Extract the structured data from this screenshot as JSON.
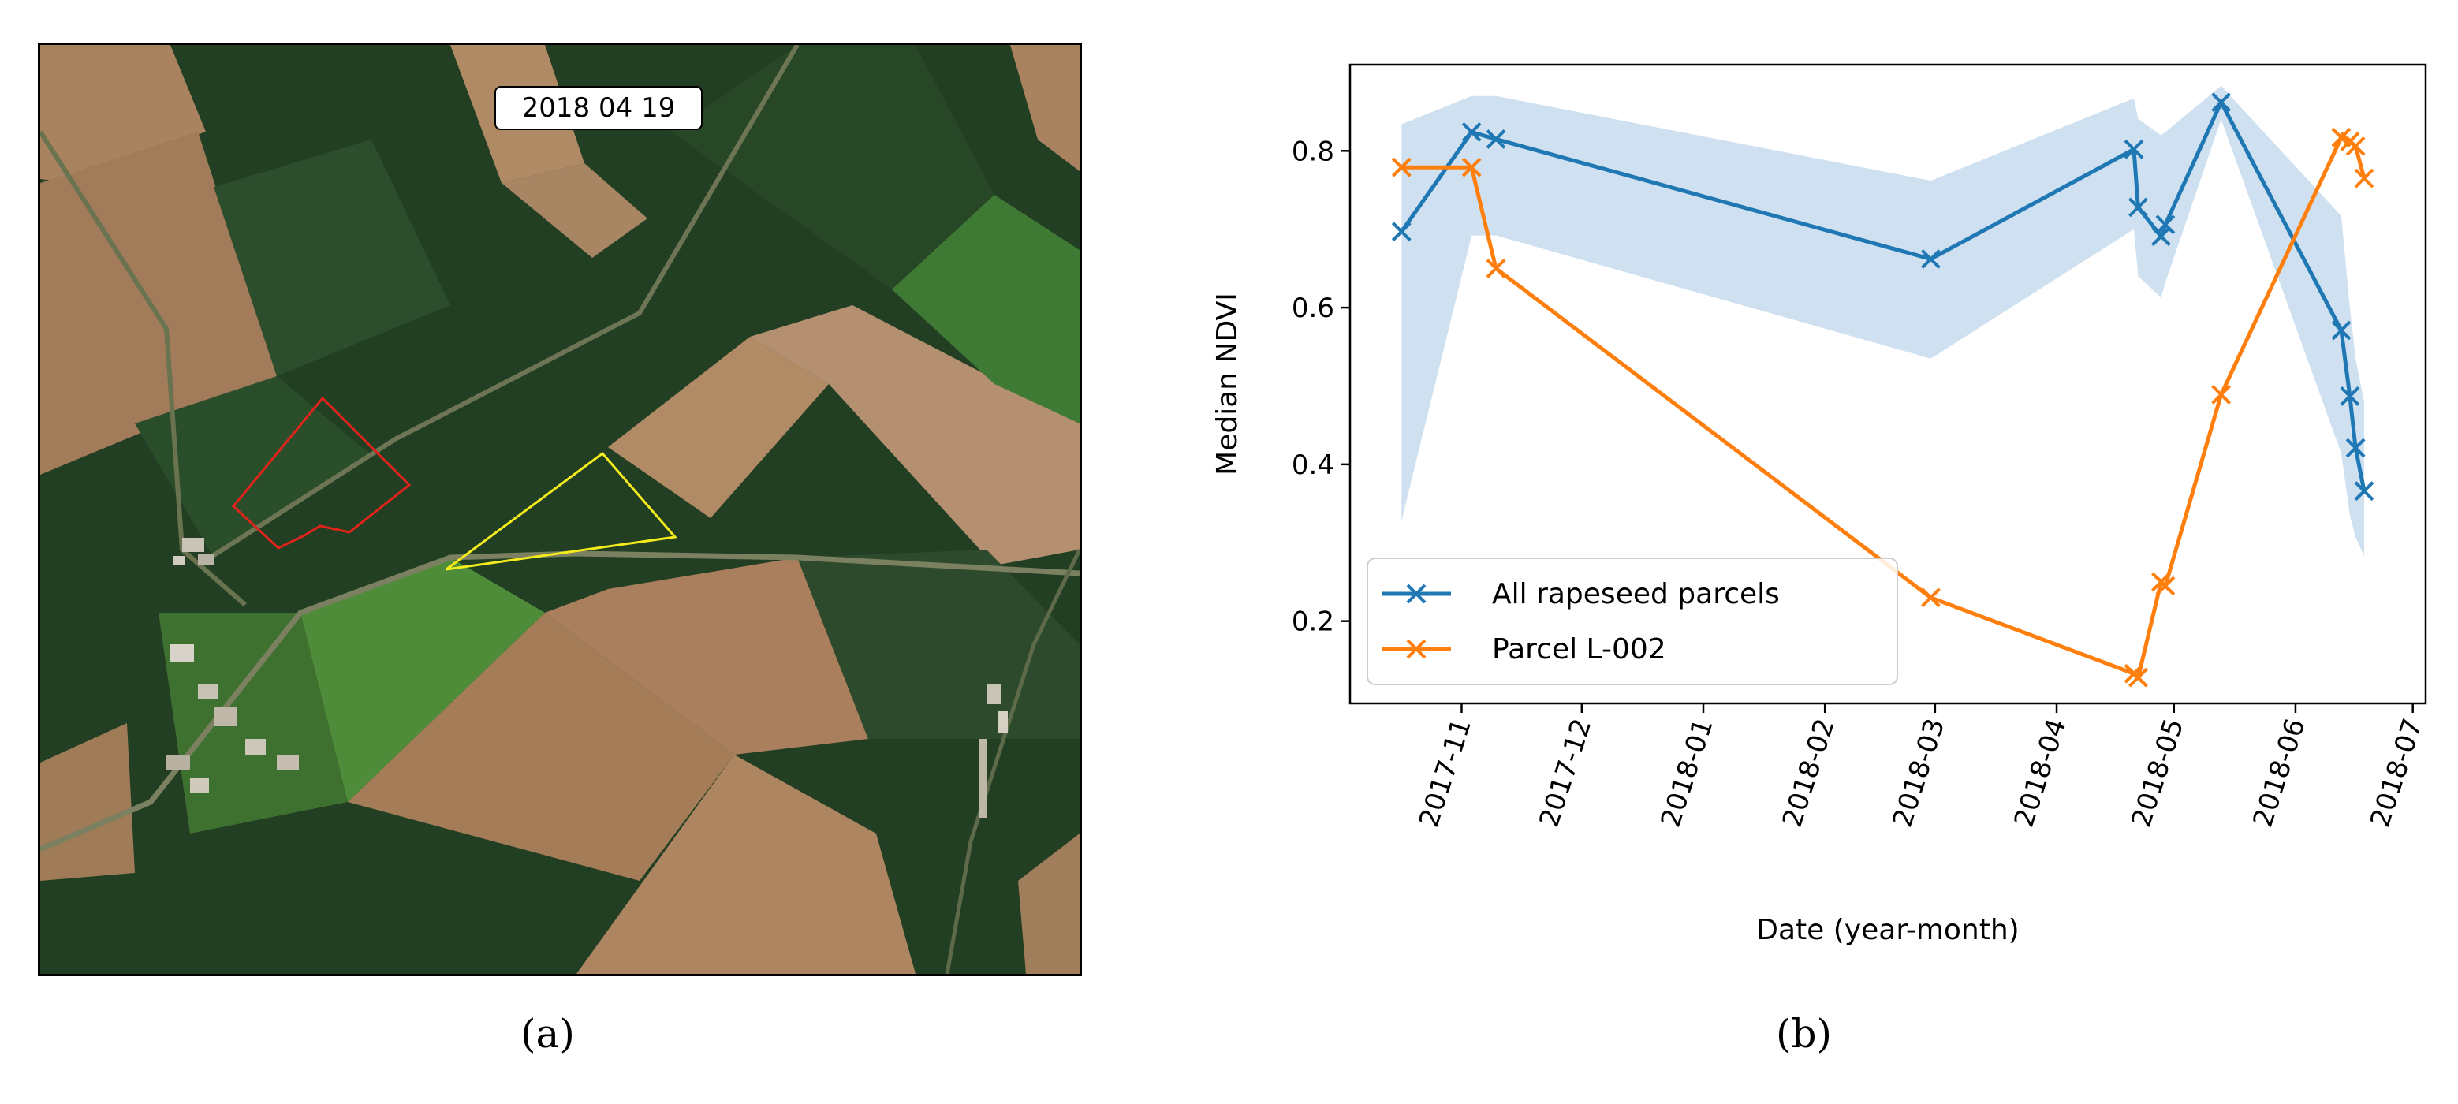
{
  "panel_a": {
    "date_label": "2018 04 19",
    "caption_label": "(a)",
    "colors": {
      "bare_soil": "#a7825e",
      "dark_field": "#213d22",
      "green_field": "#4f8b3a",
      "red_polygon": "#e0241b",
      "yellow_polygon": "#f5ec1d"
    }
  },
  "panel_b": {
    "caption_label": "(b)"
  },
  "chart_data": {
    "type": "line",
    "title": "",
    "xlabel": "Date (year-month)",
    "ylabel": "Median NDVI",
    "x_tick_labels": [
      "2017-11",
      "2017-12",
      "2018-01",
      "2018-02",
      "2018-03",
      "2018-04",
      "2018-05",
      "2018-06",
      "2018-07"
    ],
    "x_tick_values": [
      2017.831,
      2017.915,
      2018.0,
      2018.085,
      2018.162,
      2018.247,
      2018.329,
      2018.414,
      2018.496
    ],
    "xlim": [
      2017.753,
      2018.505
    ],
    "y_ticks": [
      0.2,
      0.4,
      0.6,
      0.8
    ],
    "y_tick_labels": [
      "0.2",
      "0.4",
      "0.6",
      "0.8"
    ],
    "ylim": [
      0.095,
      0.91
    ],
    "legend_position": "lower-left",
    "series": [
      {
        "name": "All rapeseed parcels",
        "color": "#1f77b4",
        "marker": "x",
        "x": [
          2017.789,
          2017.838,
          2017.855,
          2018.159,
          2018.301,
          2018.304,
          2018.32,
          2018.323,
          2018.362,
          2018.446,
          2018.452,
          2018.456,
          2018.462
        ],
        "y": [
          0.697,
          0.824,
          0.815,
          0.662,
          0.802,
          0.728,
          0.691,
          0.706,
          0.862,
          0.571,
          0.487,
          0.421,
          0.366
        ],
        "band_upper": [
          0.834,
          0.87,
          0.87,
          0.762,
          0.867,
          0.841,
          0.82,
          0.824,
          0.883,
          0.717,
          0.6,
          0.535,
          0.48
        ],
        "band_lower": [
          0.328,
          0.692,
          0.692,
          0.535,
          0.7,
          0.64,
          0.613,
          0.632,
          0.84,
          0.414,
          0.335,
          0.307,
          0.283
        ]
      },
      {
        "name": "Parcel L-002",
        "color": "#ff7f0e",
        "marker": "x",
        "x": [
          2017.789,
          2017.838,
          2017.855,
          2018.159,
          2018.301,
          2018.304,
          2018.32,
          2018.323,
          2018.362,
          2018.446,
          2018.452,
          2018.456,
          2018.462
        ],
        "y": [
          0.779,
          0.779,
          0.65,
          0.23,
          0.133,
          0.128,
          0.25,
          0.245,
          0.489,
          0.817,
          0.812,
          0.806,
          0.765
        ]
      }
    ]
  }
}
